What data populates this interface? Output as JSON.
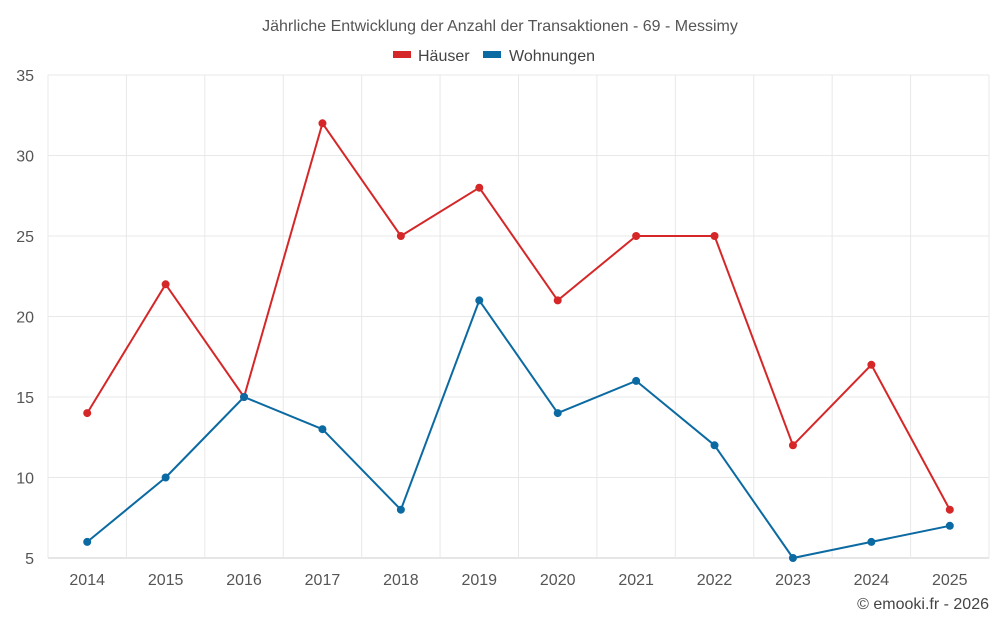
{
  "chart_data": {
    "type": "line",
    "title": "Jährliche Entwicklung der Anzahl der Transaktionen - 69 - Messimy",
    "categories": [
      "2014",
      "2015",
      "2016",
      "2017",
      "2018",
      "2019",
      "2020",
      "2021",
      "2022",
      "2023",
      "2024",
      "2025"
    ],
    "ylim": [
      5,
      35
    ],
    "yticks": [
      5,
      10,
      15,
      20,
      25,
      30,
      35
    ],
    "grid": true,
    "legend_position": "top-center",
    "series": [
      {
        "name": "Häuser",
        "color": "#d62728",
        "values": [
          14,
          22,
          15,
          32,
          25,
          28,
          21,
          25,
          25,
          12,
          17,
          8
        ]
      },
      {
        "name": "Wohnungen",
        "color": "#0b6aa2",
        "values": [
          6,
          10,
          15,
          13,
          8,
          21,
          14,
          16,
          12,
          5,
          6,
          7
        ]
      }
    ]
  },
  "credit": "© emooki.fr - 2026"
}
